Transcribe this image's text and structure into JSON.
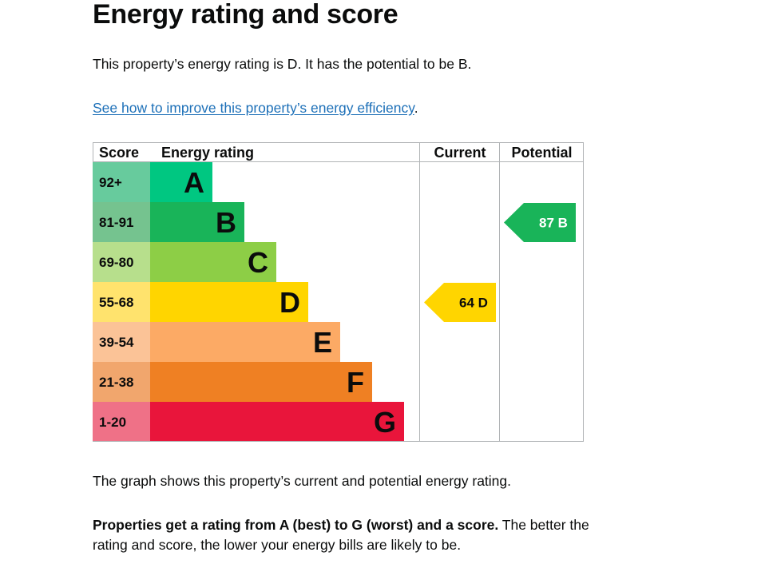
{
  "page": {
    "title": "Energy rating and score",
    "intro": "This property’s energy rating is D. It has the potential to be B.",
    "improve_link": "See how to improve this property’s energy efficiency",
    "improve_link_suffix": ".",
    "graph_caption": "The graph shows this property’s current and potential energy rating.",
    "explanation_bold": "Properties get a rating from A (best) to G (worst) and a score.",
    "explanation_rest": " The better the rating and score, the lower your energy bills are likely to be."
  },
  "chart_data": {
    "type": "table",
    "headers": {
      "score": "Score",
      "rating": "Energy rating",
      "current": "Current",
      "potential": "Potential"
    },
    "bands": [
      {
        "letter": "A",
        "range": "92+",
        "color": "#00c781",
        "score_bg": "#67cb9d",
        "text_color": "#0b0c0c"
      },
      {
        "letter": "B",
        "range": "81-91",
        "color": "#19b459",
        "score_bg": "#75c38f",
        "text_color": "#0b0c0c"
      },
      {
        "letter": "C",
        "range": "69-80",
        "color": "#8dce46",
        "score_bg": "#b7df8c",
        "text_color": "#0b0c0c"
      },
      {
        "letter": "D",
        "range": "55-68",
        "color": "#ffd500",
        "score_bg": "#ffe36d",
        "text_color": "#0b0c0c"
      },
      {
        "letter": "E",
        "range": "39-54",
        "color": "#fcaa65",
        "score_bg": "#fbc397",
        "text_color": "#0b0c0c"
      },
      {
        "letter": "F",
        "range": "21-38",
        "color": "#ef8023",
        "score_bg": "#f1a66d",
        "text_color": "#0b0c0c"
      },
      {
        "letter": "G",
        "range": "1-20",
        "color": "#e9153b",
        "score_bg": "#ef7187",
        "text_color": "#0b0c0c"
      }
    ],
    "current": {
      "score": 64,
      "band": "D",
      "label": "64  D",
      "color": "#ffd500",
      "text_color": "#0b0c0c"
    },
    "potential": {
      "score": 87,
      "band": "B",
      "label": "87  B",
      "color": "#19b459",
      "text_color": "#ffffff"
    }
  }
}
